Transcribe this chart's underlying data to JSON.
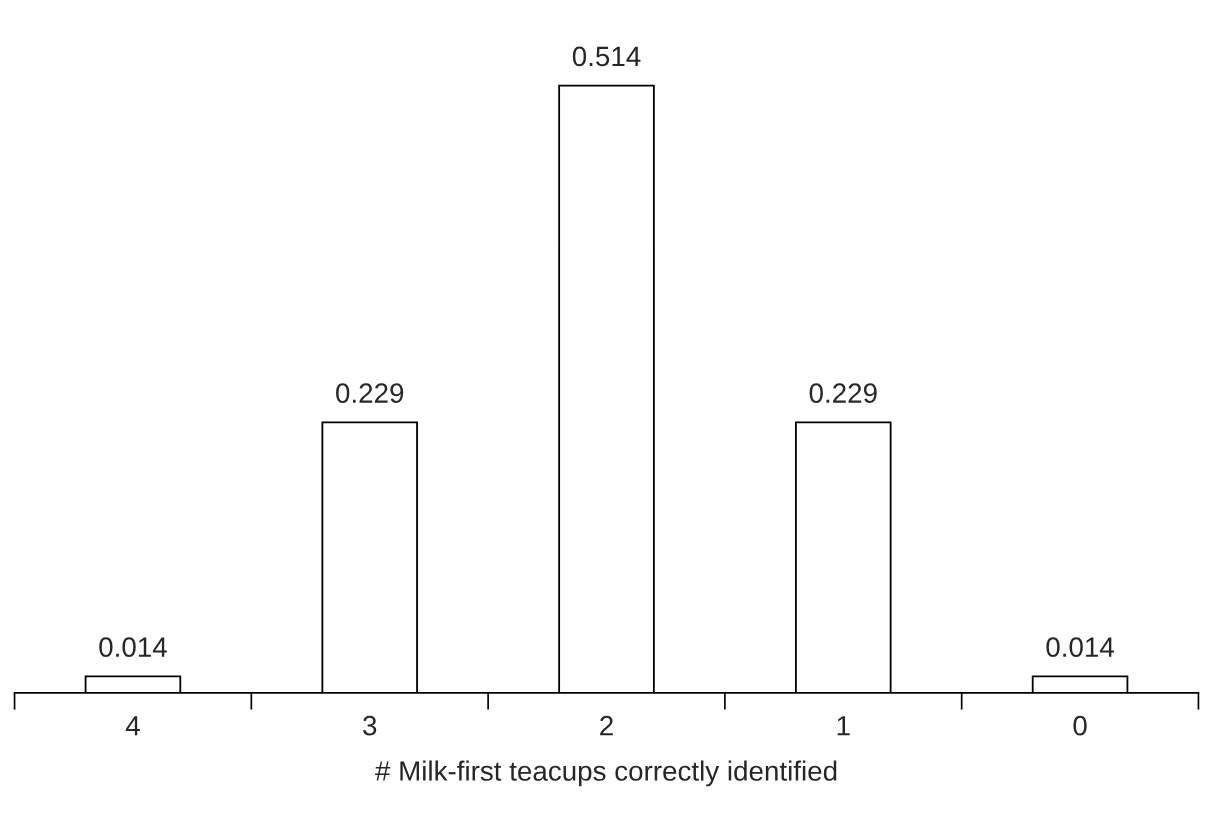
{
  "chart_data": {
    "type": "bar",
    "categories": [
      "4",
      "3",
      "2",
      "1",
      "0"
    ],
    "values": [
      0.014,
      0.229,
      0.514,
      0.229,
      0.014
    ],
    "color": "#ffffff",
    "xlabel": "# Milk-first teacups correctly identified",
    "data_labels": true
  }
}
